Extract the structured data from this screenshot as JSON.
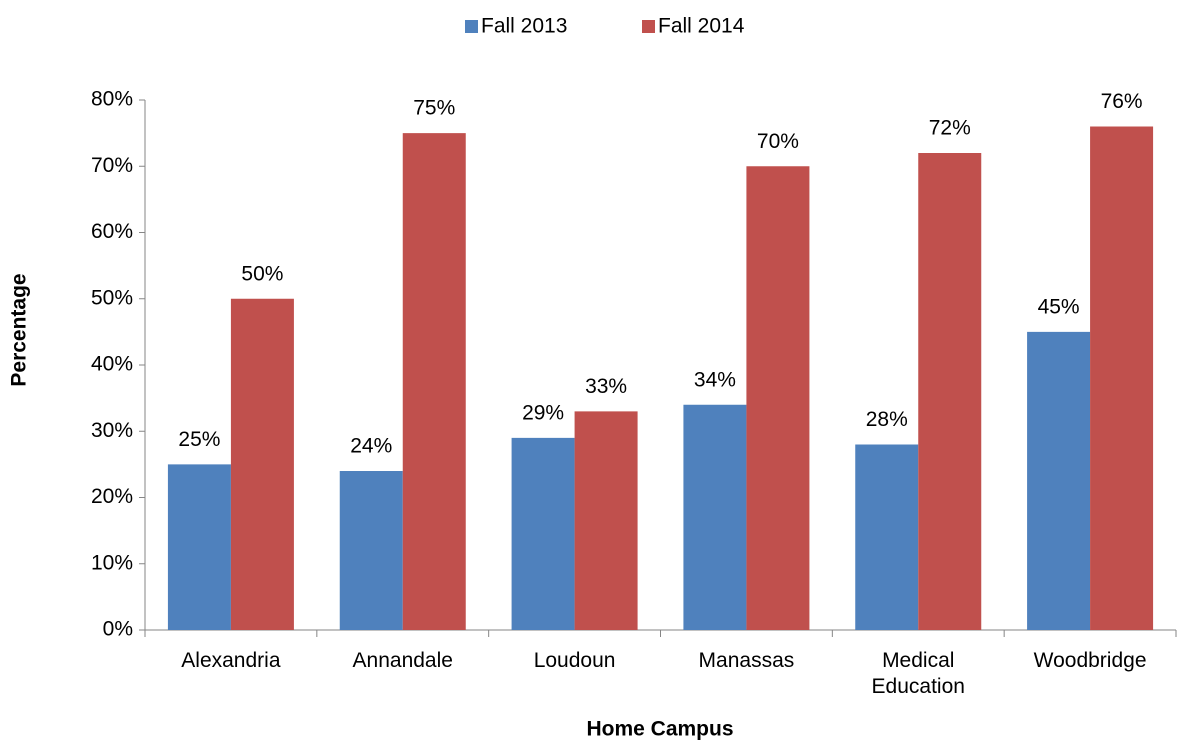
{
  "chart_data": {
    "type": "bar",
    "x_label": "Home Campus",
    "y_label": "Percentage",
    "categories": [
      "Alexandria",
      "Annandale",
      "Loudoun",
      "Manassas",
      "Medical Education",
      "Woodbridge"
    ],
    "series": [
      {
        "name": "Fall 2013",
        "color": "#4f81bd",
        "values": [
          25,
          24,
          29,
          34,
          28,
          45
        ],
        "value_labels": [
          "25%",
          "24%",
          "29%",
          "34%",
          "28%",
          "45%"
        ]
      },
      {
        "name": "Fall 2014",
        "color": "#c0504d",
        "values": [
          50,
          75,
          33,
          70,
          72,
          76
        ],
        "value_labels": [
          "50%",
          "75%",
          "33%",
          "70%",
          "72%",
          "76%"
        ]
      }
    ],
    "ylim": [
      0,
      80
    ],
    "yticks": [
      {
        "value": 0,
        "label": "0%"
      },
      {
        "value": 10,
        "label": "10%"
      },
      {
        "value": 20,
        "label": "20%"
      },
      {
        "value": 30,
        "label": "30%"
      },
      {
        "value": 40,
        "label": "40%"
      },
      {
        "value": 50,
        "label": "50%"
      },
      {
        "value": 60,
        "label": "60%"
      },
      {
        "value": 70,
        "label": "70%"
      },
      {
        "value": 80,
        "label": "80%"
      }
    ],
    "grid": false,
    "legend": "top"
  }
}
